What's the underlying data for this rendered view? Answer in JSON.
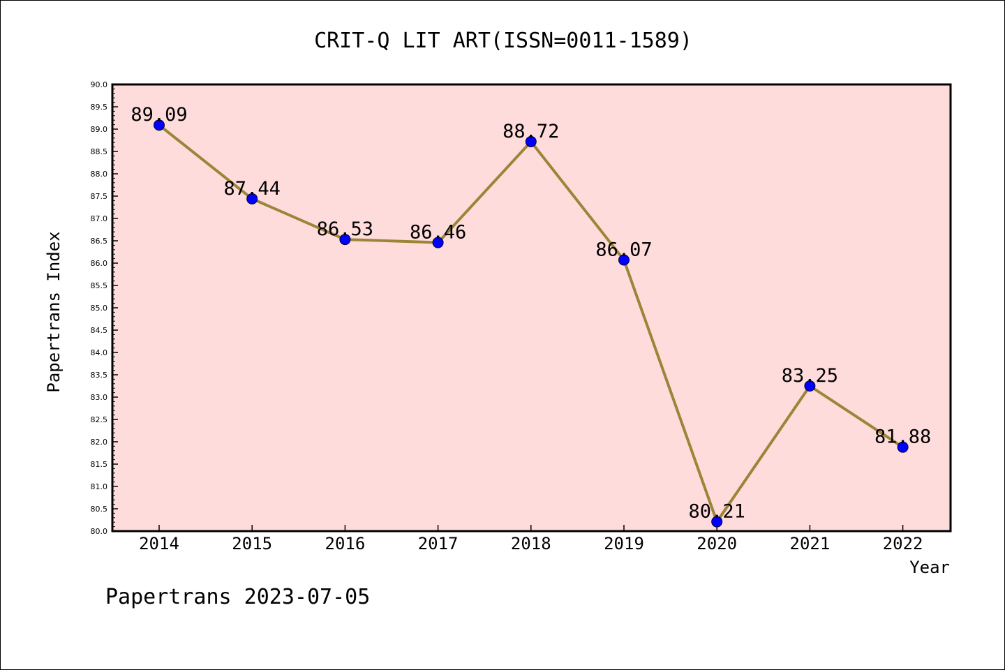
{
  "chart_data": {
    "type": "line",
    "title": "CRIT-Q LIT ART(ISSN=0011-1589)",
    "xlabel": "Year",
    "ylabel": "Papertrans Index",
    "footer": "Papertrans 2023-07-05",
    "categories": [
      "2014",
      "2015",
      "2016",
      "2017",
      "2018",
      "2019",
      "2020",
      "2021",
      "2022"
    ],
    "values": [
      89.09,
      87.44,
      86.53,
      86.46,
      88.72,
      86.07,
      80.21,
      83.25,
      81.88
    ],
    "data_labels": [
      "89.09",
      "87.44",
      "86.53",
      "86.46",
      "88.72",
      "86.07",
      "80.21",
      "83.25",
      "81.88"
    ],
    "ylim": [
      80.0,
      90.0
    ],
    "yticks": [
      "80.0",
      "80.5",
      "81.0",
      "81.5",
      "82.0",
      "82.5",
      "83.0",
      "83.5",
      "84.0",
      "84.5",
      "85.0",
      "85.5",
      "86.0",
      "86.5",
      "87.0",
      "87.5",
      "88.0",
      "88.5",
      "89.0",
      "89.5",
      "90.0"
    ],
    "grid": false,
    "colors": {
      "plot_background": "#ffdcdc",
      "line": "#9b8538",
      "marker": "#0000ff"
    }
  }
}
